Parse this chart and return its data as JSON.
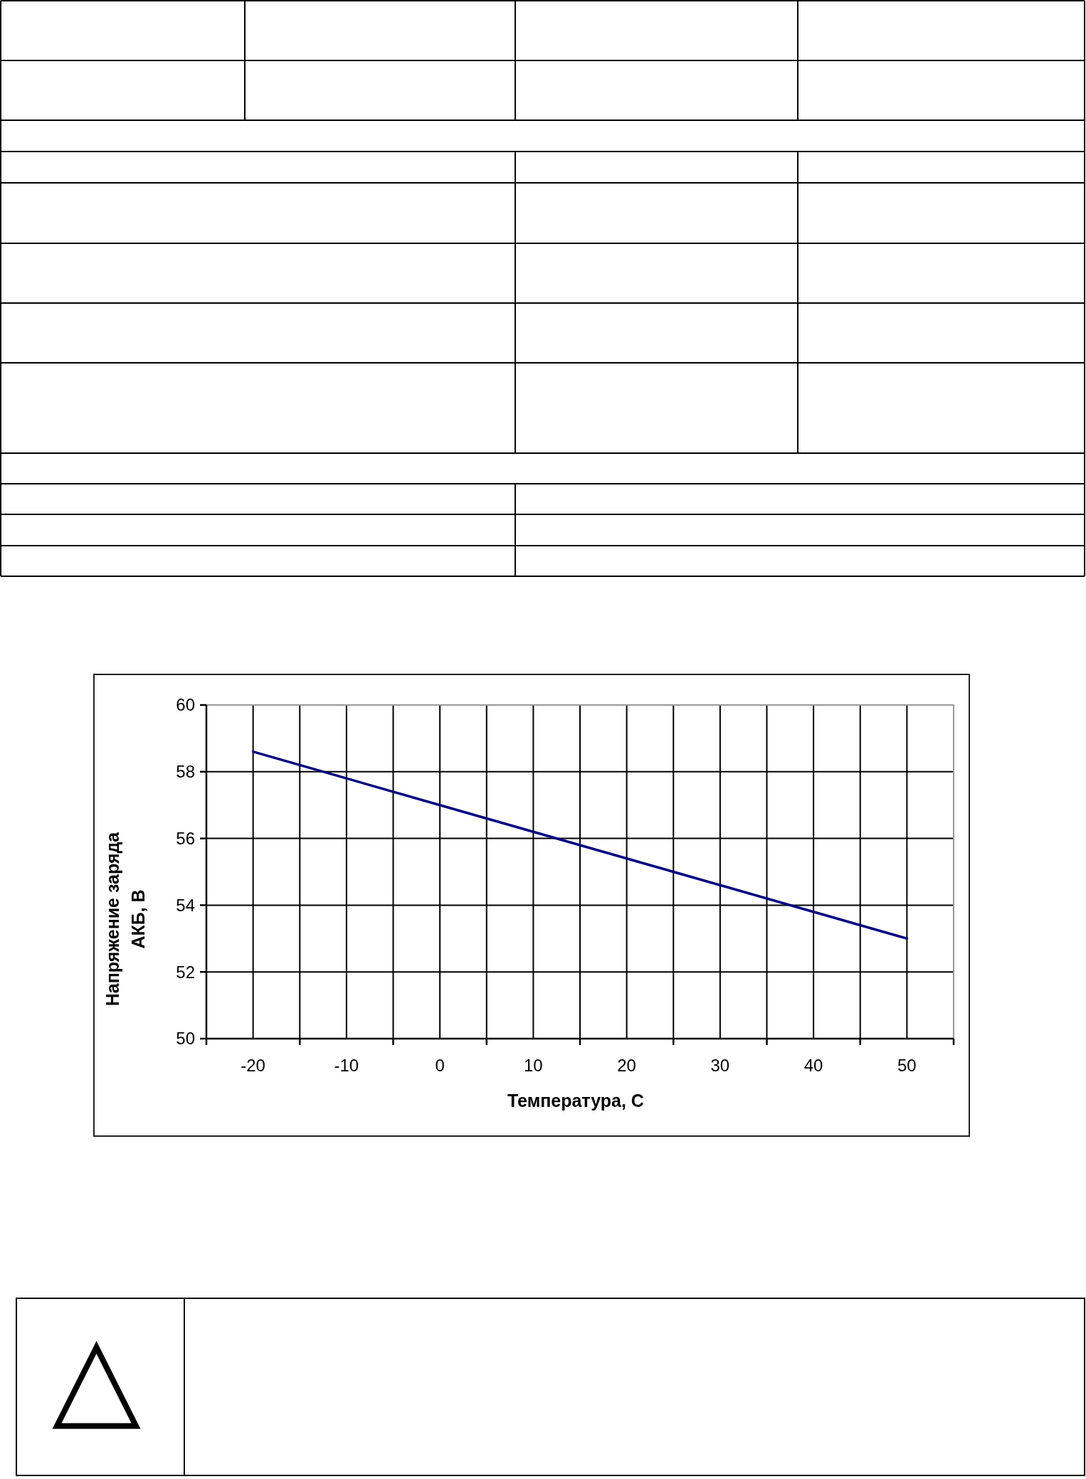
{
  "chart_data": {
    "type": "line",
    "xlabel": "Температура, С",
    "ylabel": "Напряжение заряда\nАКБ, В",
    "x": [
      -20,
      -10,
      0,
      10,
      20,
      30,
      40,
      50
    ],
    "series": [
      {
        "color": "#000080",
        "values": [
          58.6,
          57.8,
          57.0,
          56.2,
          55.4,
          54.6,
          53.8,
          53.0
        ]
      }
    ],
    "xlim": [
      -25,
      55
    ],
    "xticks": [
      {
        "value": -25,
        "label": null
      },
      -20,
      {
        "value": -15,
        "label": null
      },
      -10,
      {
        "value": -5,
        "label": null
      },
      0,
      {
        "value": 5,
        "label": null
      },
      10,
      {
        "value": 15,
        "label": null
      },
      20,
      {
        "value": 25,
        "label": null
      },
      30,
      {
        "value": 35,
        "label": null
      },
      40,
      {
        "value": 45,
        "label": null
      },
      50,
      {
        "value": 55,
        "label": null
      }
    ],
    "ylim": [
      50,
      60
    ],
    "yticks": [
      50,
      52,
      54,
      56,
      58,
      60
    ],
    "grid": true,
    "line_style": "solid"
  }
}
